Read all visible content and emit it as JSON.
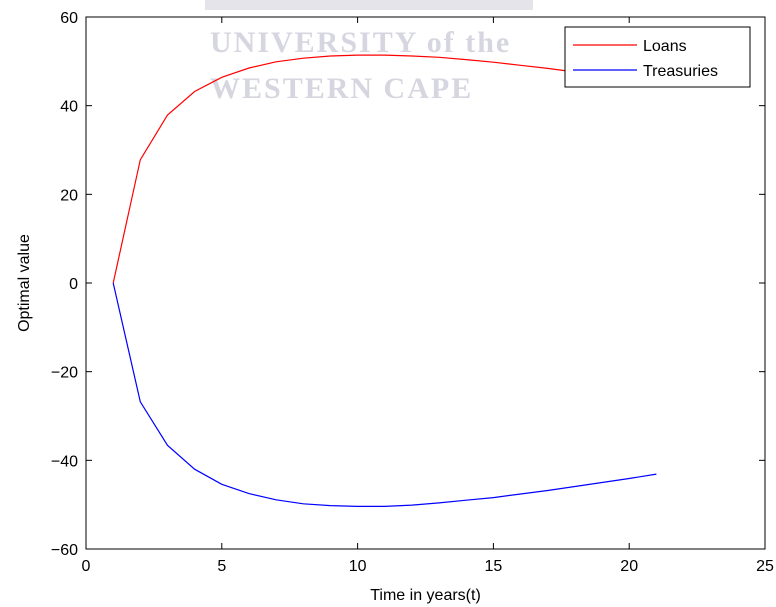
{
  "chart_data": {
    "type": "line",
    "title": "",
    "xlabel": "Time in years(t)",
    "ylabel": "Optimal value",
    "xlim": [
      0,
      25
    ],
    "ylim": [
      -60,
      60
    ],
    "xticks": [
      0,
      5,
      10,
      15,
      20,
      25
    ],
    "yticks": [
      -60,
      -40,
      -20,
      0,
      20,
      40,
      60
    ],
    "xtick_labels": [
      "0",
      "5",
      "10",
      "15",
      "20",
      "25"
    ],
    "ytick_labels": [
      "−60",
      "−40",
      "−20",
      "0",
      "20",
      "40",
      "60"
    ],
    "grid": false,
    "legend_position": "top-right",
    "series": [
      {
        "name": "Loans",
        "color": "#ff0000",
        "x": [
          1,
          2,
          3,
          4,
          5,
          6,
          7,
          8,
          9,
          10,
          11,
          12,
          13,
          14,
          15,
          16,
          17,
          18,
          19,
          20,
          21
        ],
        "y": [
          0,
          27.8,
          37.9,
          43.2,
          46.4,
          48.5,
          49.9,
          50.7,
          51.2,
          51.4,
          51.4,
          51.2,
          50.9,
          50.4,
          49.8,
          49.1,
          48.4,
          47.6,
          46.6,
          45.6,
          44.5
        ]
      },
      {
        "name": "Treasuries",
        "color": "#0000ff",
        "x": [
          1,
          2,
          3,
          4,
          5,
          6,
          7,
          8,
          9,
          10,
          11,
          12,
          13,
          14,
          15,
          16,
          17,
          18,
          19,
          20,
          21
        ],
        "y": [
          0,
          -26.8,
          -36.6,
          -42.0,
          -45.4,
          -47.5,
          -48.9,
          -49.8,
          -50.2,
          -50.4,
          -50.4,
          -50.1,
          -49.6,
          -49.0,
          -48.4,
          -47.6,
          -46.8,
          -45.9,
          -45.0,
          -44.1,
          -43.1
        ]
      }
    ]
  },
  "watermark": {
    "line1": "UNIVERSITY of the",
    "line2": "WESTERN CAPE"
  }
}
